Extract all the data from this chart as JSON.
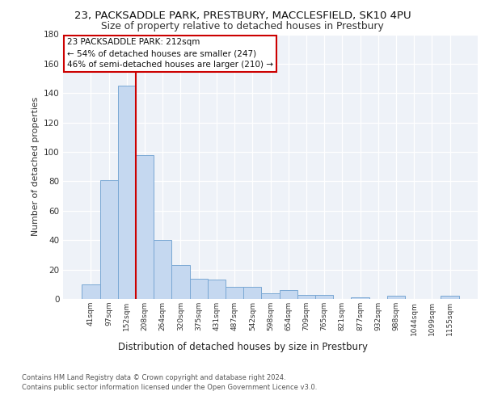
{
  "title_line1": "23, PACKSADDLE PARK, PRESTBURY, MACCLESFIELD, SK10 4PU",
  "title_line2": "Size of property relative to detached houses in Prestbury",
  "xlabel": "Distribution of detached houses by size in Prestbury",
  "ylabel": "Number of detached properties",
  "categories": [
    "41sqm",
    "97sqm",
    "152sqm",
    "208sqm",
    "264sqm",
    "320sqm",
    "375sqm",
    "431sqm",
    "487sqm",
    "542sqm",
    "598sqm",
    "654sqm",
    "709sqm",
    "765sqm",
    "821sqm",
    "877sqm",
    "932sqm",
    "988sqm",
    "1044sqm",
    "1099sqm",
    "1155sqm"
  ],
  "values": [
    10,
    81,
    145,
    98,
    40,
    23,
    14,
    13,
    8,
    8,
    4,
    6,
    3,
    3,
    0,
    1,
    0,
    2,
    0,
    0,
    2
  ],
  "bar_color": "#c5d8f0",
  "bar_edge_color": "#7aa8d4",
  "vline_x_index": 3,
  "vline_color": "#cc0000",
  "annotation_text": "23 PACKSADDLE PARK: 212sqm\n← 54% of detached houses are smaller (247)\n46% of semi-detached houses are larger (210) →",
  "annotation_box_color": "#ffffff",
  "annotation_box_edge": "#cc0000",
  "ylim": [
    0,
    180
  ],
  "yticks": [
    0,
    20,
    40,
    60,
    80,
    100,
    120,
    140,
    160,
    180
  ],
  "footer_line1": "Contains HM Land Registry data © Crown copyright and database right 2024.",
  "footer_line2": "Contains public sector information licensed under the Open Government Licence v3.0.",
  "plot_bg_color": "#eef2f8"
}
